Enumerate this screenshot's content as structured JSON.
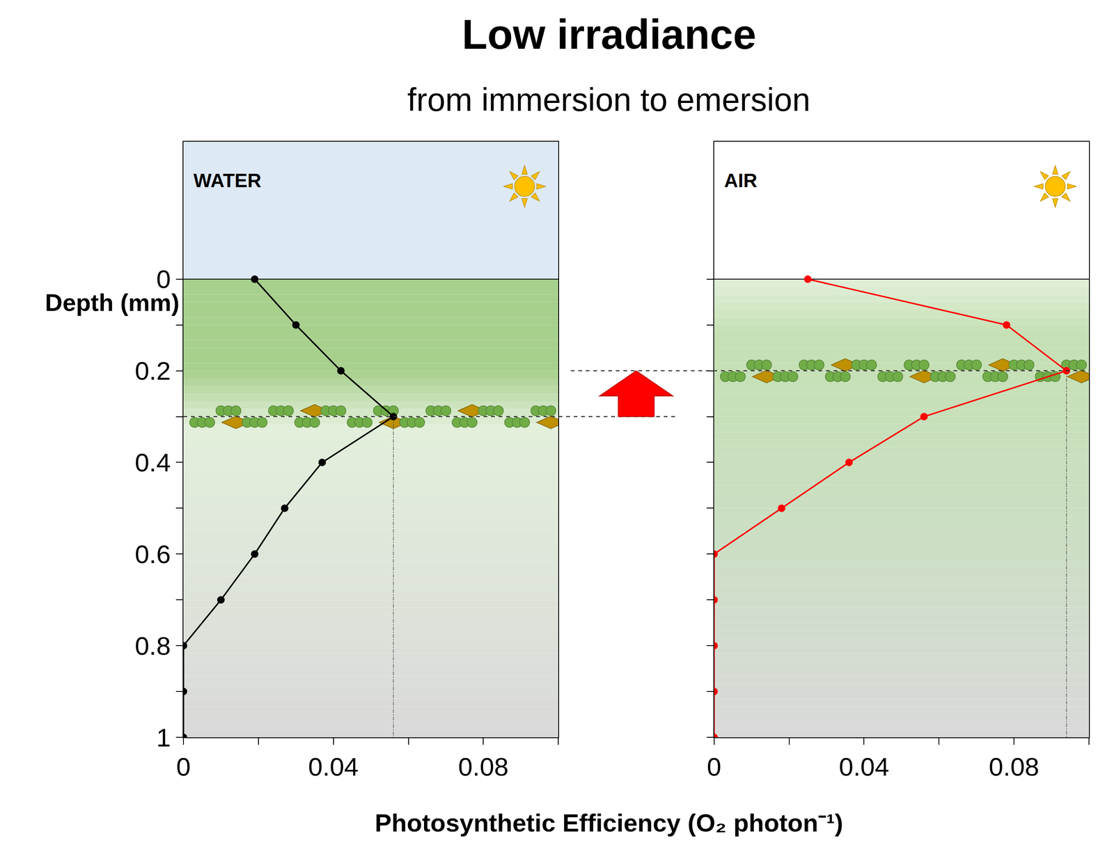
{
  "title": "Low irradiance",
  "subtitle": "from immersion to emersion",
  "chart_data": [
    {
      "type": "line",
      "title": "WATER",
      "ylabel": "Depth (mm)",
      "xlabel": "Photosynthetic Efficiency (O₂ photon⁻¹)",
      "y": [
        0,
        0.1,
        0.2,
        0.3,
        0.4,
        0.5,
        0.6,
        0.7,
        0.8,
        0.9,
        1
      ],
      "x": [
        0.019,
        0.03,
        0.042,
        0.056,
        0.037,
        0.027,
        0.019,
        0.01,
        0,
        0,
        0
      ],
      "color": "#000000",
      "marker": "circle",
      "xlim": [
        0,
        0.1
      ],
      "ylim": [
        1,
        -0.3
      ],
      "xticks": [
        0,
        0.04,
        0.08
      ],
      "yticks": [
        0,
        0.2,
        0.4,
        0.6,
        0.8,
        1
      ]
    },
    {
      "type": "line",
      "title": "AIR",
      "y": [
        0,
        0.1,
        0.2,
        0.3,
        0.4,
        0.5,
        0.6,
        0.7,
        0.8,
        0.9,
        1
      ],
      "x": [
        0.025,
        0.078,
        0.094,
        0.056,
        0.036,
        0.018,
        0,
        0,
        0,
        0,
        0
      ],
      "color": "#ff0000",
      "marker": "circle",
      "xlim": [
        0,
        0.1
      ],
      "ylim": [
        1,
        -0.3
      ],
      "xticks": [
        0,
        0.04,
        0.08
      ],
      "yticks": [
        0,
        0.2,
        0.4,
        0.6,
        0.8,
        1
      ],
      "tick_labels": "x"
    }
  ]
}
